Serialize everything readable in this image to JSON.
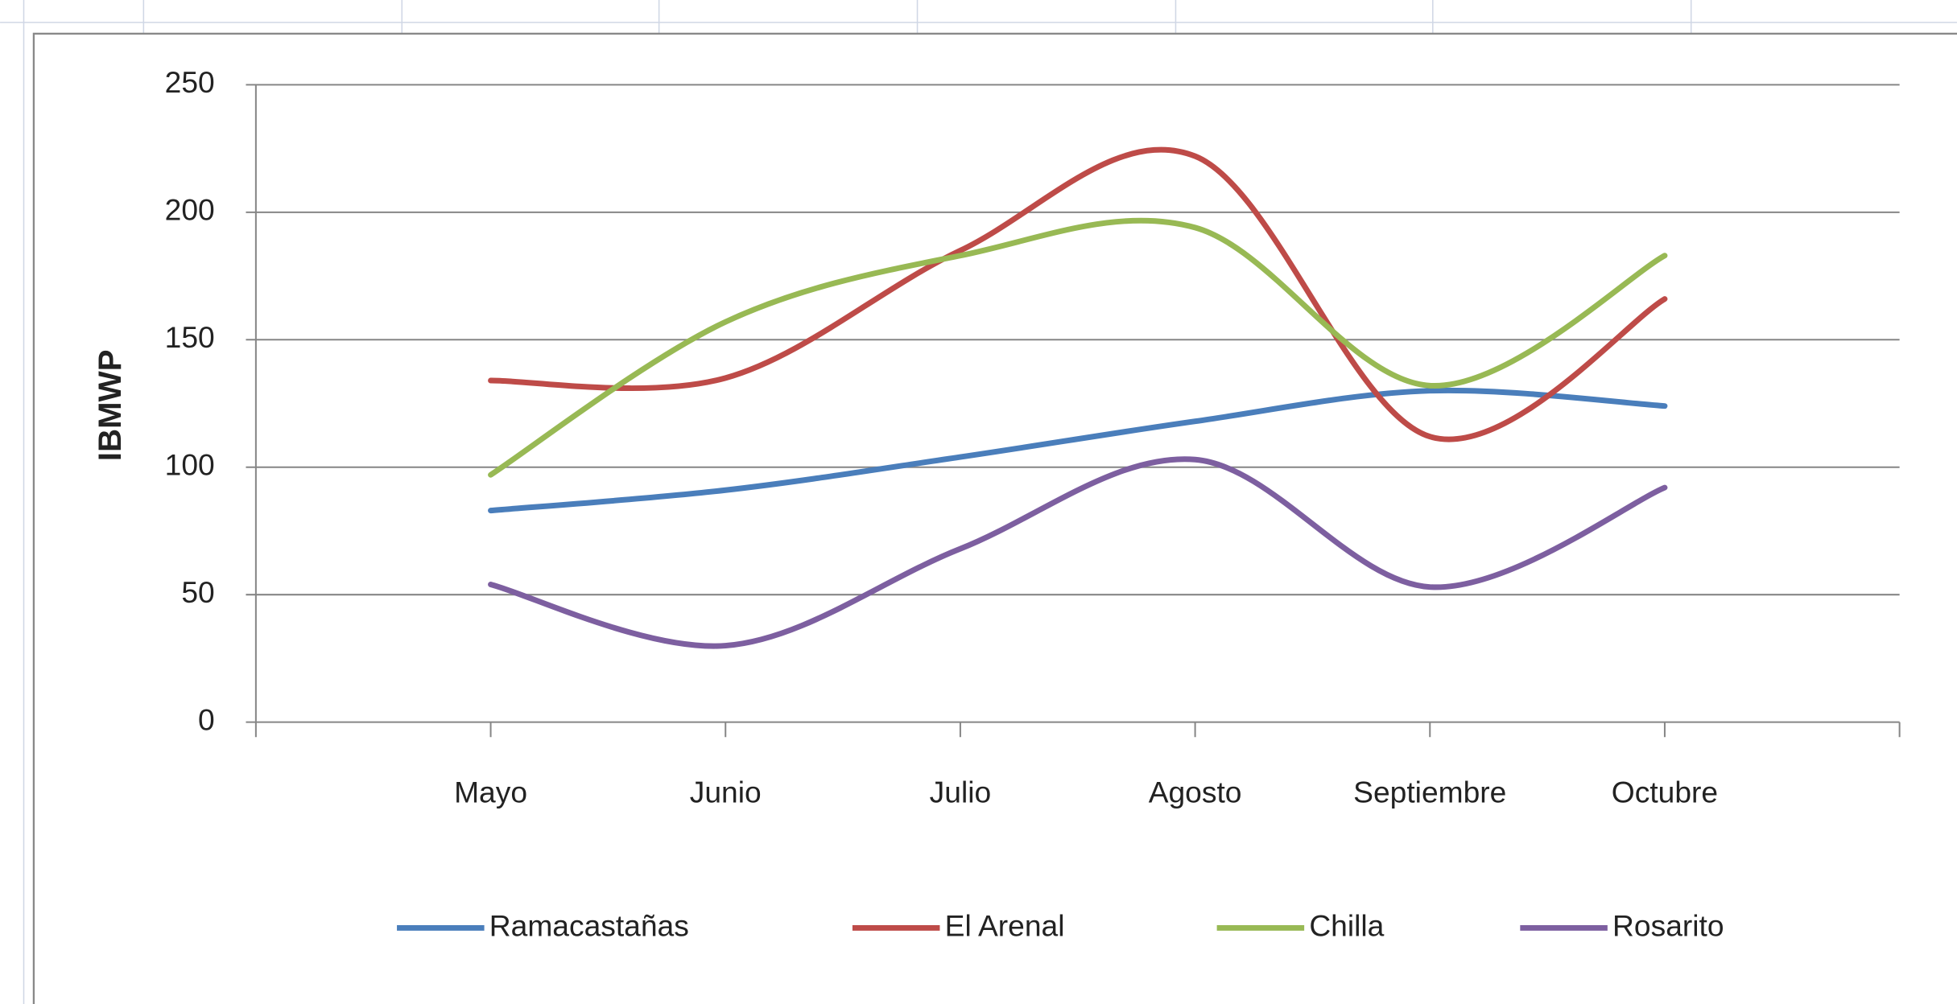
{
  "chart_data": {
    "type": "line",
    "smooth": true,
    "y_label": "IBMWP",
    "categories": [
      null,
      "Mayo",
      "Junio",
      "Julio",
      "Agosto",
      "Septiembre",
      "Octubre",
      null
    ],
    "series": [
      {
        "name": "Ramacastañas",
        "color": "#4a7ebb",
        "values": [
          null,
          83,
          91,
          104,
          118,
          130,
          124,
          null
        ]
      },
      {
        "name": "El Arenal",
        "color": "#be4b48",
        "values": [
          null,
          134,
          135,
          185,
          222,
          112,
          166,
          null
        ]
      },
      {
        "name": "Chilla",
        "color": "#98b954",
        "values": [
          null,
          97,
          157,
          183,
          194,
          132,
          183,
          null
        ]
      },
      {
        "name": "Rosarito",
        "color": "#7d5fa0",
        "values": [
          null,
          54,
          30,
          68,
          103,
          53,
          92,
          null
        ]
      }
    ],
    "ylim": [
      0,
      250
    ],
    "yticks": [
      0,
      50,
      100,
      150,
      200,
      250
    ],
    "grid": true,
    "legend": "bottom"
  }
}
